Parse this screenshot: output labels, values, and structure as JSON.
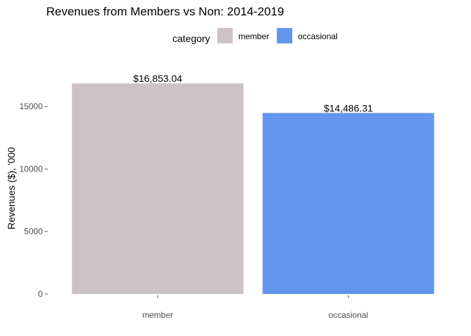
{
  "chart_data": {
    "type": "bar",
    "title": "Revenues from Members vs Non: 2014-2019",
    "xlabel": "",
    "ylabel": "Revenues ($), '000",
    "categories": [
      "member",
      "occasional"
    ],
    "values": [
      16853.04,
      14486.31
    ],
    "data_labels": [
      "$16,853.04",
      "$14,486.31"
    ],
    "colors": [
      "#cdc3c6",
      "#6495ed"
    ],
    "ylim": [
      0,
      17700
    ],
    "yticks": [
      0,
      5000,
      10000,
      15000
    ],
    "ytick_labels": [
      "0",
      "5000",
      "10000",
      "15000"
    ],
    "grid": false,
    "legend": {
      "title": "category",
      "position": "top",
      "entries": [
        "member",
        "occasional"
      ]
    }
  }
}
